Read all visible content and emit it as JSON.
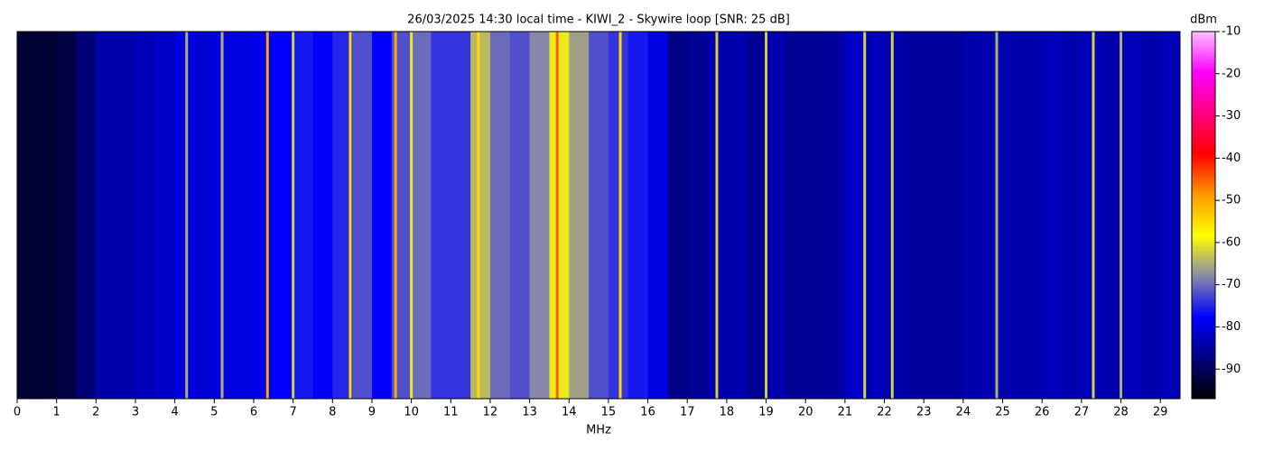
{
  "chart_data": {
    "type": "heatmap",
    "title": "26/03/2025 14:30 local time - KIWI_2 - Skywire loop [SNR: 25 dB]",
    "xlabel": "MHz",
    "colorbar_label": "dBm",
    "x": [
      0,
      0.5,
      1,
      1.5,
      2,
      2.5,
      3,
      3.5,
      4,
      4.5,
      5,
      5.5,
      6,
      6.5,
      7,
      7.5,
      8,
      8.5,
      9,
      9.5,
      10,
      10.5,
      11,
      11.5,
      12,
      12.5,
      13,
      13.5,
      14,
      14.5,
      15,
      15.5,
      16,
      16.5,
      17,
      17.5,
      18,
      18.5,
      19,
      19.5,
      20,
      20.5,
      21,
      21.5,
      22,
      22.5,
      23,
      23.5,
      24,
      24.5,
      25,
      25.5,
      26,
      26.5,
      27,
      27.5,
      28,
      28.5,
      29
    ],
    "values": [
      -93,
      -93,
      -92,
      -88,
      -84,
      -84,
      -83,
      -82,
      -80,
      -81,
      -80,
      -80,
      -79,
      -78,
      -76,
      -78,
      -75,
      -72,
      -78,
      -72,
      -70,
      -74,
      -74,
      -64,
      -70,
      -72,
      -68,
      -60,
      -66,
      -72,
      -74,
      -76,
      -80,
      -87,
      -86,
      -84,
      -84,
      -86,
      -84,
      -86,
      -86,
      -85,
      -82,
      -83,
      -84,
      -85,
      -85,
      -85,
      -84,
      -84,
      -84,
      -84,
      -83,
      -84,
      -83,
      -84,
      -83,
      -84,
      -83
    ],
    "signals": {
      "x": [
        4.3,
        5.2,
        6.35,
        7.0,
        8.45,
        9.6,
        10.0,
        11.7,
        13.7,
        15.3,
        17.75,
        19.0,
        21.5,
        22.2,
        24.85,
        27.3,
        28.0
      ],
      "values": [
        -65,
        -65,
        -50,
        -62,
        -55,
        -50,
        -60,
        -55,
        -45,
        -55,
        -62,
        -62,
        -62,
        -62,
        -65,
        -62,
        -65
      ]
    },
    "xlim": [
      0,
      29.5
    ],
    "xticks": [
      0,
      1,
      2,
      3,
      4,
      5,
      6,
      7,
      8,
      9,
      10,
      11,
      12,
      13,
      14,
      15,
      16,
      17,
      18,
      19,
      20,
      21,
      22,
      23,
      24,
      25,
      26,
      27,
      28,
      29
    ],
    "clim": [
      -97,
      -10
    ],
    "cticks": [
      -90,
      -80,
      -70,
      -60,
      -50,
      -40,
      -30,
      -20,
      -10
    ],
    "colormap": [
      "#000000",
      "#000080",
      "#0000ff",
      "#8888aa",
      "#ffff00",
      "#ff9900",
      "#ff0000",
      "#ff0080",
      "#ff00ff",
      "#ffc0ff"
    ]
  }
}
